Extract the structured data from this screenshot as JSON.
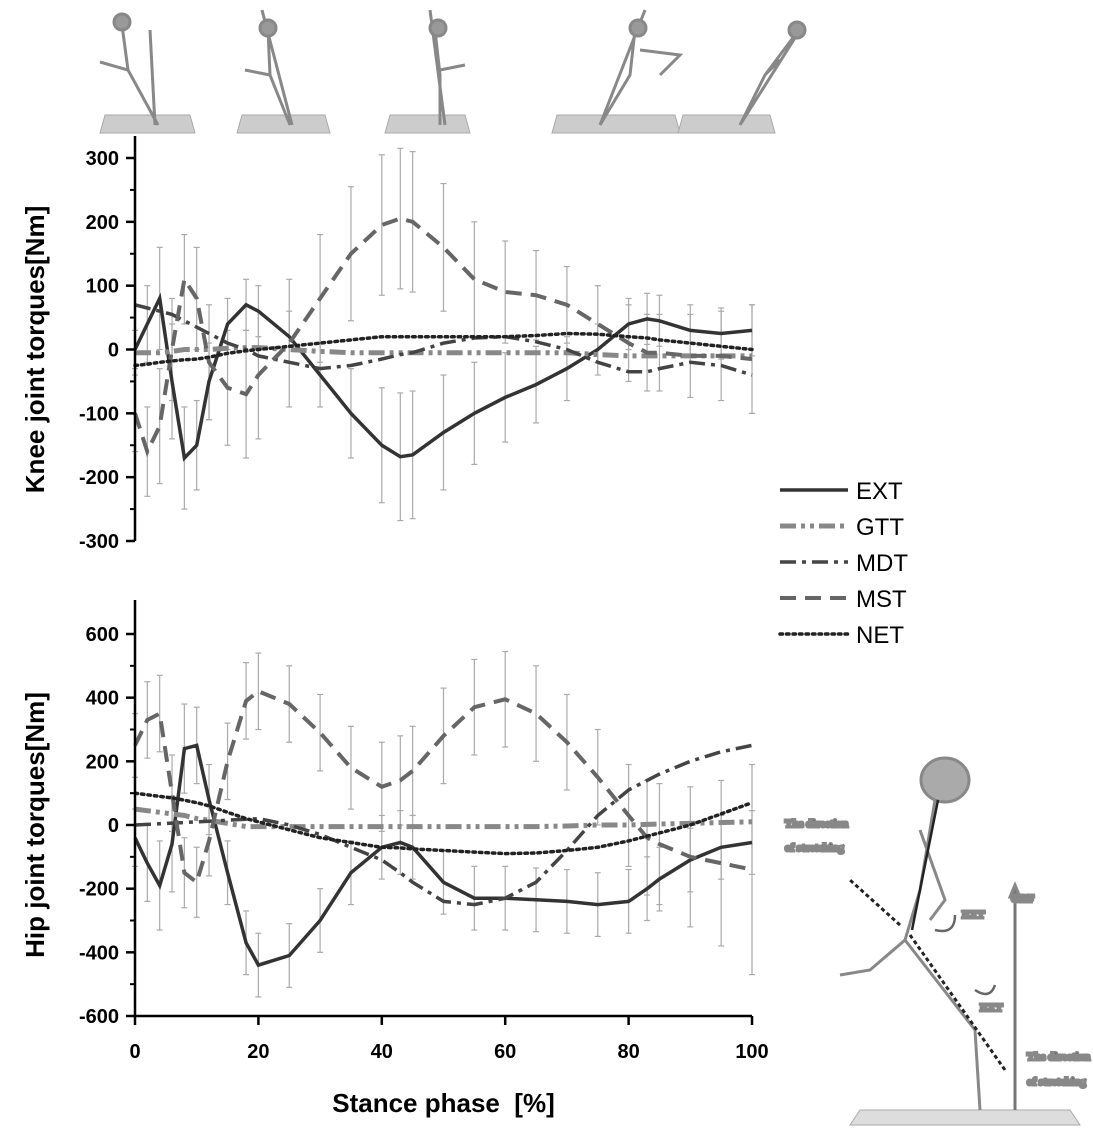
{
  "chart_data": [
    {
      "type": "line",
      "y_label": "Knee joint torques[Nm]",
      "x": [
        0,
        2,
        4,
        6,
        8,
        10,
        12,
        15,
        18,
        20,
        25,
        30,
        35,
        40,
        43,
        45,
        50,
        55,
        60,
        65,
        70,
        75,
        80,
        83,
        85,
        90,
        95,
        100
      ],
      "xlim": [
        0,
        100
      ],
      "ylim": [
        -300,
        300
      ],
      "yticks": [
        -300,
        -200,
        -100,
        0,
        100,
        200,
        300
      ],
      "series": [
        {
          "name": "EXT",
          "color": "#333333",
          "style": "solid",
          "width": 3.5,
          "values": [
            0,
            40,
            80,
            -50,
            -170,
            -150,
            -50,
            40,
            70,
            60,
            20,
            -40,
            -100,
            -150,
            -168,
            -165,
            -130,
            -100,
            -75,
            -55,
            -30,
            0,
            40,
            48,
            45,
            30,
            25,
            30
          ],
          "errors": [
            30,
            60,
            80,
            90,
            80,
            70,
            60,
            40,
            40,
            40,
            40,
            50,
            70,
            90,
            100,
            100,
            90,
            80,
            70,
            60,
            50,
            40,
            40,
            40,
            40,
            40,
            40,
            40
          ]
        },
        {
          "name": "GTT",
          "color": "#888888",
          "style": "dashdotdot",
          "width": 5,
          "values": [
            -5,
            -5,
            -5,
            -3,
            0,
            0,
            0,
            2,
            3,
            3,
            0,
            -3,
            -5,
            -5,
            -5,
            -5,
            -5,
            -5,
            -5,
            -5,
            -5,
            -8,
            -10,
            -10,
            -10,
            -10,
            -10,
            -10
          ]
        },
        {
          "name": "MDT",
          "color": "#444444",
          "style": "dashdot",
          "width": 3.5,
          "values": [
            70,
            65,
            60,
            55,
            45,
            35,
            25,
            10,
            0,
            -10,
            -20,
            -30,
            -25,
            -15,
            -8,
            -5,
            10,
            18,
            20,
            12,
            0,
            -20,
            -35,
            -35,
            -30,
            -20,
            -25,
            -40
          ]
        },
        {
          "name": "MST",
          "color": "#666666",
          "style": "dash",
          "width": 4,
          "values": [
            -100,
            -160,
            -120,
            0,
            110,
            80,
            -20,
            -60,
            -70,
            -40,
            10,
            80,
            150,
            195,
            205,
            200,
            160,
            110,
            90,
            85,
            70,
            40,
            10,
            -5,
            -5,
            -10,
            -10,
            -15
          ],
          "errors": [
            60,
            70,
            90,
            80,
            70,
            80,
            90,
            90,
            100,
            100,
            100,
            100,
            105,
            110,
            110,
            110,
            100,
            90,
            80,
            70,
            60,
            60,
            60,
            60,
            60,
            65,
            70,
            85
          ]
        },
        {
          "name": "NET",
          "color": "#222222",
          "style": "dot",
          "width": 3.5,
          "values": [
            -25,
            -23,
            -20,
            -18,
            -16,
            -15,
            -12,
            -6,
            -2,
            0,
            5,
            10,
            15,
            20,
            20,
            20,
            20,
            20,
            20,
            22,
            25,
            24,
            20,
            18,
            15,
            10,
            5,
            0
          ]
        }
      ]
    },
    {
      "type": "line",
      "y_label": "Hip joint torques[Nm]",
      "x_label": "Stance phase  [%]",
      "x": [
        0,
        2,
        4,
        6,
        8,
        10,
        12,
        15,
        18,
        20,
        25,
        30,
        35,
        40,
        43,
        45,
        50,
        55,
        60,
        65,
        70,
        75,
        80,
        83,
        85,
        90,
        95,
        100
      ],
      "xlim": [
        0,
        100
      ],
      "xticks": [
        0,
        20,
        40,
        60,
        80,
        100
      ],
      "ylim": [
        -600,
        600
      ],
      "yticks": [
        -600,
        -400,
        -200,
        0,
        200,
        400,
        600
      ],
      "series": [
        {
          "color": "#333333",
          "style": "solid",
          "width": 3.5,
          "values": [
            -40,
            -120,
            -190,
            -60,
            240,
            250,
            80,
            -150,
            -370,
            -440,
            -410,
            -300,
            -150,
            -70,
            -55,
            -70,
            -180,
            -230,
            -230,
            -235,
            -240,
            -250,
            -240,
            -200,
            -170,
            -110,
            -70,
            -55
          ],
          "errors": [
            90,
            120,
            140,
            150,
            140,
            120,
            110,
            100,
            100,
            100,
            100,
            100,
            100,
            100,
            100,
            100,
            100,
            100,
            100,
            100,
            100,
            100,
            100,
            100,
            100,
            100,
            100,
            100
          ]
        },
        {
          "color": "#888888",
          "style": "dashdotdot",
          "width": 5,
          "values": [
            50,
            45,
            40,
            35,
            30,
            20,
            15,
            5,
            -5,
            -5,
            -5,
            -5,
            -5,
            -5,
            -5,
            -5,
            -5,
            -5,
            -5,
            -5,
            -3,
            0,
            0,
            2,
            3,
            5,
            8,
            10
          ]
        },
        {
          "color": "#444444",
          "style": "dashdot",
          "width": 3.5,
          "values": [
            0,
            2,
            4,
            6,
            8,
            10,
            12,
            15,
            18,
            20,
            0,
            -30,
            -70,
            -110,
            -150,
            -180,
            -240,
            -250,
            -230,
            -180,
            -80,
            30,
            110,
            140,
            160,
            200,
            230,
            250
          ]
        },
        {
          "color": "#666666",
          "style": "dash",
          "width": 4,
          "values": [
            250,
            330,
            350,
            100,
            -150,
            -180,
            -50,
            200,
            390,
            420,
            380,
            290,
            180,
            120,
            140,
            170,
            280,
            370,
            395,
            350,
            260,
            150,
            30,
            -40,
            -60,
            -100,
            -120,
            -140
          ],
          "errors": [
            100,
            120,
            120,
            120,
            110,
            110,
            110,
            120,
            120,
            120,
            120,
            120,
            130,
            140,
            140,
            140,
            150,
            150,
            150,
            150,
            150,
            150,
            160,
            180,
            190,
            220,
            260,
            330
          ]
        },
        {
          "color": "#222222",
          "style": "dot",
          "width": 3.5,
          "values": [
            100,
            95,
            90,
            85,
            78,
            70,
            60,
            40,
            20,
            10,
            -15,
            -40,
            -55,
            -70,
            -72,
            -75,
            -80,
            -85,
            -90,
            -88,
            -80,
            -70,
            -50,
            -35,
            -25,
            0,
            35,
            70
          ]
        }
      ]
    }
  ],
  "illustration_labels": [
    "The direction",
    "of stretching",
    "GRF",
    "EXT",
    "EXT",
    "The direction",
    "of stretching"
  ]
}
